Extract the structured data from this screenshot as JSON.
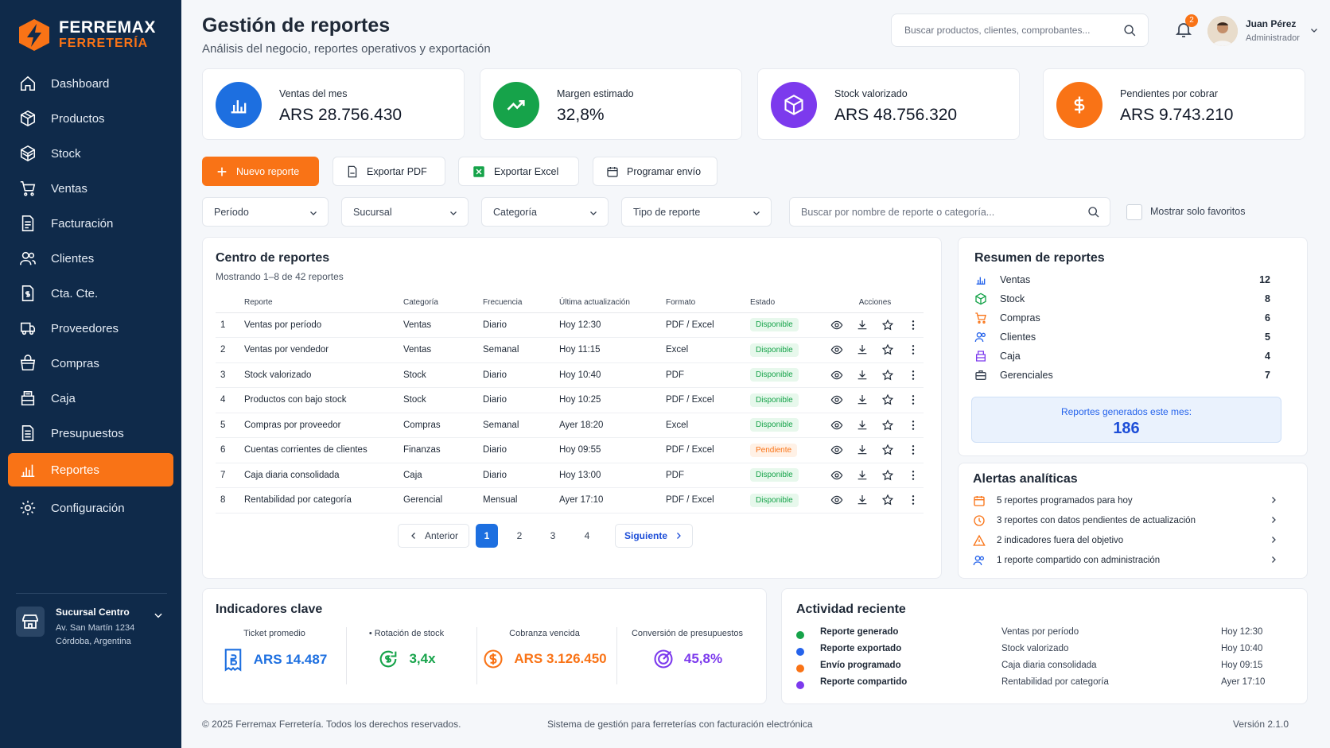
{
  "brand": {
    "name": "FERREMAX",
    "sub": "FERRETERÍA",
    "accent": "#f97316",
    "sidebar_bg": "#0f2a4a"
  },
  "nav": [
    {
      "label": "Dashboard",
      "icon": "home-icon"
    },
    {
      "label": "Productos",
      "icon": "box-icon"
    },
    {
      "label": "Stock",
      "icon": "stock-icon"
    },
    {
      "label": "Ventas",
      "icon": "cart-icon"
    },
    {
      "label": "Facturación",
      "icon": "invoice-icon"
    },
    {
      "label": "Clientes",
      "icon": "users-icon"
    },
    {
      "label": "Cta. Cte.",
      "icon": "account-icon"
    },
    {
      "label": "Proveedores",
      "icon": "truck-icon"
    },
    {
      "label": "Compras",
      "icon": "basket-icon"
    },
    {
      "label": "Caja",
      "icon": "register-icon"
    },
    {
      "label": "Presupuestos",
      "icon": "document-icon"
    },
    {
      "label": "Reportes",
      "icon": "chart-icon",
      "active": true
    },
    {
      "label": "Configuración",
      "icon": "gear-icon"
    }
  ],
  "branch": {
    "name": "Sucursal Centro",
    "addr1": "Av. San Martín 1234",
    "addr2": "Córdoba, Argentina"
  },
  "header": {
    "title": "Gestión de reportes",
    "subtitle": "Análisis del negocio, reportes operativos y exportación",
    "search_placeholder": "Buscar productos, clientes, comprobantes...",
    "notifications": "2",
    "user_name": "Juan Pérez",
    "user_role": "Administrador"
  },
  "kpis": [
    {
      "label": "Ventas del mes",
      "value": "ARS 28.756.430",
      "color": "#1d6fe0",
      "icon": "bar-chart-icon"
    },
    {
      "label": "Margen estimado",
      "value": "32,8%",
      "color": "#16a34a",
      "icon": "trend-up-icon"
    },
    {
      "label": "Stock valorizado",
      "value": "ARS 48.756.320",
      "color": "#7c3aed",
      "icon": "cube-icon"
    },
    {
      "label": "Pendientes por cobrar",
      "value": "ARS 9.743.210",
      "color": "#f97316",
      "icon": "dollar-icon"
    }
  ],
  "actions": {
    "new": "Nuevo reporte",
    "pdf": "Exportar PDF",
    "excel": "Exportar Excel",
    "schedule": "Programar envío"
  },
  "filters": {
    "period": "Período",
    "branch": "Sucursal",
    "category": "Categoría",
    "type": "Tipo de reporte",
    "search_placeholder": "Buscar por nombre de reporte o categoría...",
    "favorites": "Mostrar solo favoritos"
  },
  "reports": {
    "title": "Centro de reportes",
    "showing": "Mostrando 1–8 de 42 reportes",
    "columns": [
      "Reporte",
      "Categoría",
      "Frecuencia",
      "Última actualización",
      "Formato",
      "Estado",
      "Acciones"
    ],
    "rows": [
      {
        "n": "1",
        "name": "Ventas por período",
        "cat": "Ventas",
        "freq": "Diario",
        "updated": "Hoy 12:30",
        "format": "PDF / Excel",
        "status": "Disponible",
        "ok": true
      },
      {
        "n": "2",
        "name": "Ventas por vendedor",
        "cat": "Ventas",
        "freq": "Semanal",
        "updated": "Hoy 11:15",
        "format": "Excel",
        "status": "Disponible",
        "ok": true
      },
      {
        "n": "3",
        "name": "Stock valorizado",
        "cat": "Stock",
        "freq": "Diario",
        "updated": "Hoy 10:40",
        "format": "PDF",
        "status": "Disponible",
        "ok": true
      },
      {
        "n": "4",
        "name": "Productos con bajo stock",
        "cat": "Stock",
        "freq": "Diario",
        "updated": "Hoy 10:25",
        "format": "PDF / Excel",
        "status": "Disponible",
        "ok": true
      },
      {
        "n": "5",
        "name": "Compras por proveedor",
        "cat": "Compras",
        "freq": "Semanal",
        "updated": "Ayer 18:20",
        "format": "Excel",
        "status": "Disponible",
        "ok": true
      },
      {
        "n": "6",
        "name": "Cuentas corrientes de clientes",
        "cat": "Finanzas",
        "freq": "Diario",
        "updated": "Hoy 09:55",
        "format": "PDF / Excel",
        "status": "Pendiente",
        "ok": false
      },
      {
        "n": "7",
        "name": "Caja diaria consolidada",
        "cat": "Caja",
        "freq": "Diario",
        "updated": "Hoy 13:00",
        "format": "PDF",
        "status": "Disponible",
        "ok": true
      },
      {
        "n": "8",
        "name": "Rentabilidad por categoría",
        "cat": "Gerencial",
        "freq": "Mensual",
        "updated": "Ayer 17:10",
        "format": "PDF / Excel",
        "status": "Disponible",
        "ok": true
      }
    ],
    "pager": {
      "prev": "Anterior",
      "next": "Siguiente",
      "pages": [
        "1",
        "2",
        "3",
        "4"
      ],
      "current": "1"
    }
  },
  "summary": {
    "title": "Resumen de reportes",
    "items": [
      {
        "label": "Ventas",
        "count": "12",
        "color": "#2563eb"
      },
      {
        "label": "Stock",
        "count": "8",
        "color": "#16a34a"
      },
      {
        "label": "Compras",
        "count": "6",
        "color": "#f97316"
      },
      {
        "label": "Clientes",
        "count": "5",
        "color": "#2563eb"
      },
      {
        "label": "Caja",
        "count": "4",
        "color": "#7c3aed"
      },
      {
        "label": "Gerenciales",
        "count": "7",
        "color": "#374151"
      }
    ],
    "generated_label": "Reportes generados este mes:",
    "generated_value": "186"
  },
  "alerts": {
    "title": "Alertas analíticas",
    "items": [
      {
        "text": "5 reportes programados para hoy",
        "color": "#f97316",
        "icon": "calendar-icon"
      },
      {
        "text": "3 reportes con datos pendientes de actualización",
        "color": "#f97316",
        "icon": "clock-icon"
      },
      {
        "text": "2 indicadores fuera del objetivo",
        "color": "#f97316",
        "icon": "warning-icon"
      },
      {
        "text": "1 reporte compartido con administración",
        "color": "#2563eb",
        "icon": "users-icon"
      }
    ]
  },
  "indicators": {
    "title": "Indicadores clave",
    "items": [
      {
        "label": "Ticket promedio",
        "value": "ARS 14.487",
        "color": "#1d6fe0"
      },
      {
        "label": "• Rotación de stock",
        "value": "3,4x",
        "color": "#16a34a"
      },
      {
        "label": "Cobranza vencida",
        "value": "ARS 3.126.450",
        "color": "#f97316"
      },
      {
        "label": "Conversión de presupuestos",
        "value": "45,8%",
        "color": "#7c3aed"
      }
    ]
  },
  "activity": {
    "title": "Actividad reciente",
    "items": [
      {
        "type": "Reporte generado",
        "report": "Ventas por período",
        "when": "Hoy 12:30",
        "color": "#16a34a"
      },
      {
        "type": "Reporte exportado",
        "report": "Stock valorizado",
        "when": "Hoy 10:40",
        "color": "#2563eb"
      },
      {
        "type": "Envío programado",
        "report": "Caja diaria consolidada",
        "when": "Hoy 09:15",
        "color": "#f97316"
      },
      {
        "type": "Reporte compartido",
        "report": "Rentabilidad por categoría",
        "when": "Ayer 17:10",
        "color": "#7c3aed"
      }
    ]
  },
  "footer": {
    "copyright": "© 2025 Ferremax Ferretería. Todos los derechos reservados.",
    "system": "Sistema de gestión para ferreterías con facturación electrónica",
    "version": "Versión 2.1.0"
  }
}
